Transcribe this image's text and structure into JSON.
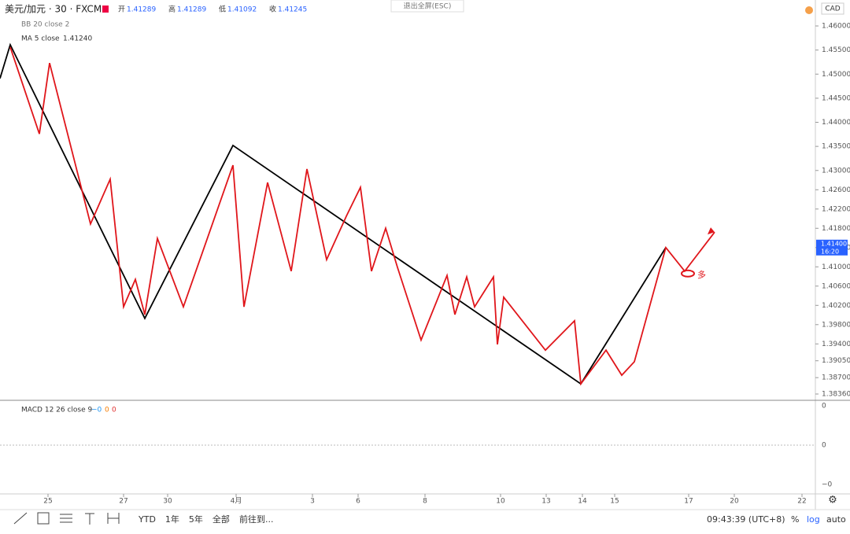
{
  "header": {
    "symbol": "美元/加元 · 30 · FXCM",
    "ohlc": [
      {
        "label": "开",
        "value": "1.41289"
      },
      {
        "label": "高",
        "value": "1.41289"
      },
      {
        "label": "低",
        "value": "1.41092"
      },
      {
        "label": "收",
        "value": "1.41245"
      }
    ],
    "exit_fullscreen": "退出全屏(ESC)",
    "currency": "CAD"
  },
  "indicators": {
    "bb": "BB 20 close 2",
    "ma": "MA 5 close",
    "ma_value": "1.41240",
    "macd": "MACD 12 26 close 9",
    "macd_values": [
      "−0",
      "0",
      "0"
    ],
    "macd_axis": [
      "0",
      "0",
      "−0"
    ]
  },
  "chart_data": {
    "type": "line",
    "ylim": [
      1.3836,
      1.46
    ],
    "yticks": [
      {
        "value": 1.46,
        "label": "1.46000"
      },
      {
        "value": 1.455,
        "label": "1.45500"
      },
      {
        "value": 1.45,
        "label": "1.45000"
      },
      {
        "value": 1.445,
        "label": "1.44500"
      },
      {
        "value": 1.44,
        "label": "1.44000"
      },
      {
        "value": 1.435,
        "label": "1.43500"
      },
      {
        "value": 1.43,
        "label": "1.43000"
      },
      {
        "value": 1.426,
        "label": "1.42600"
      },
      {
        "value": 1.422,
        "label": "1.42200"
      },
      {
        "value": 1.418,
        "label": "1.41800"
      },
      {
        "value": 1.414,
        "label": "1.41400"
      },
      {
        "value": 1.41,
        "label": "1.41000"
      },
      {
        "value": 1.406,
        "label": "1.40600"
      },
      {
        "value": 1.402,
        "label": "1.40200"
      },
      {
        "value": 1.398,
        "label": "1.39800"
      },
      {
        "value": 1.394,
        "label": "1.39400"
      },
      {
        "value": 1.3905,
        "label": "1.39050"
      },
      {
        "value": 1.387,
        "label": "1.38700"
      },
      {
        "value": 1.3836,
        "label": "1.38360"
      }
    ],
    "xlim": [
      0,
      1035
    ],
    "xticks": [
      {
        "value": 61,
        "label": "25"
      },
      {
        "value": 157,
        "label": "27"
      },
      {
        "value": 213,
        "label": "30"
      },
      {
        "value": 300,
        "label": "4月"
      },
      {
        "value": 397,
        "label": "3"
      },
      {
        "value": 455,
        "label": "6"
      },
      {
        "value": 540,
        "label": "8"
      },
      {
        "value": 636,
        "label": "10"
      },
      {
        "value": 694,
        "label": "13"
      },
      {
        "value": 740,
        "label": "14"
      },
      {
        "value": 781,
        "label": "15"
      },
      {
        "value": 875,
        "label": "17"
      },
      {
        "value": 933,
        "label": "20"
      },
      {
        "value": 1019,
        "label": "22"
      }
    ],
    "series": [
      {
        "name": "waves",
        "color": "#000000",
        "x": [
          0,
          13,
          184,
          296,
          738,
          846
        ],
        "values": [
          1.4491,
          1.4561,
          1.3993,
          1.4352,
          1.3857,
          1.414
        ]
      },
      {
        "name": "sub-waves",
        "color": "#e0161b",
        "x": [
          13,
          50,
          63,
          115,
          140,
          157,
          172,
          184,
          200,
          233,
          296,
          310,
          340,
          370,
          390,
          415,
          440,
          458,
          472,
          490,
          505,
          535,
          568,
          578,
          593,
          603,
          627,
          632,
          640,
          693,
          730,
          738,
          770,
          790,
          806,
          846,
          870,
          908
        ],
        "values": [
          1.4556,
          1.4376,
          1.4523,
          1.4189,
          1.4282,
          1.4017,
          1.4074,
          1.4001,
          1.4159,
          1.4017,
          1.4311,
          1.4017,
          1.4275,
          1.4091,
          1.4303,
          1.4115,
          1.4205,
          1.4265,
          1.4091,
          1.418,
          1.4099,
          1.3948,
          1.4082,
          1.4001,
          1.4079,
          1.4017,
          1.4079,
          1.3939,
          1.4037,
          1.3927,
          1.3988,
          1.3857,
          1.3927,
          1.3875,
          1.3903,
          1.414,
          1.4091,
          1.4172
        ]
      }
    ],
    "annotation": "多",
    "last_price": {
      "value": 1.414,
      "label": "1.41400"
    },
    "countdown": "16:20"
  },
  "toolbar": {
    "ranges": [
      "YTD",
      "1年",
      "5年",
      "全部"
    ],
    "goto": "前往到...",
    "clock": "09:43:39 (UTC+8)",
    "options": [
      "%",
      "log",
      "auto"
    ]
  }
}
